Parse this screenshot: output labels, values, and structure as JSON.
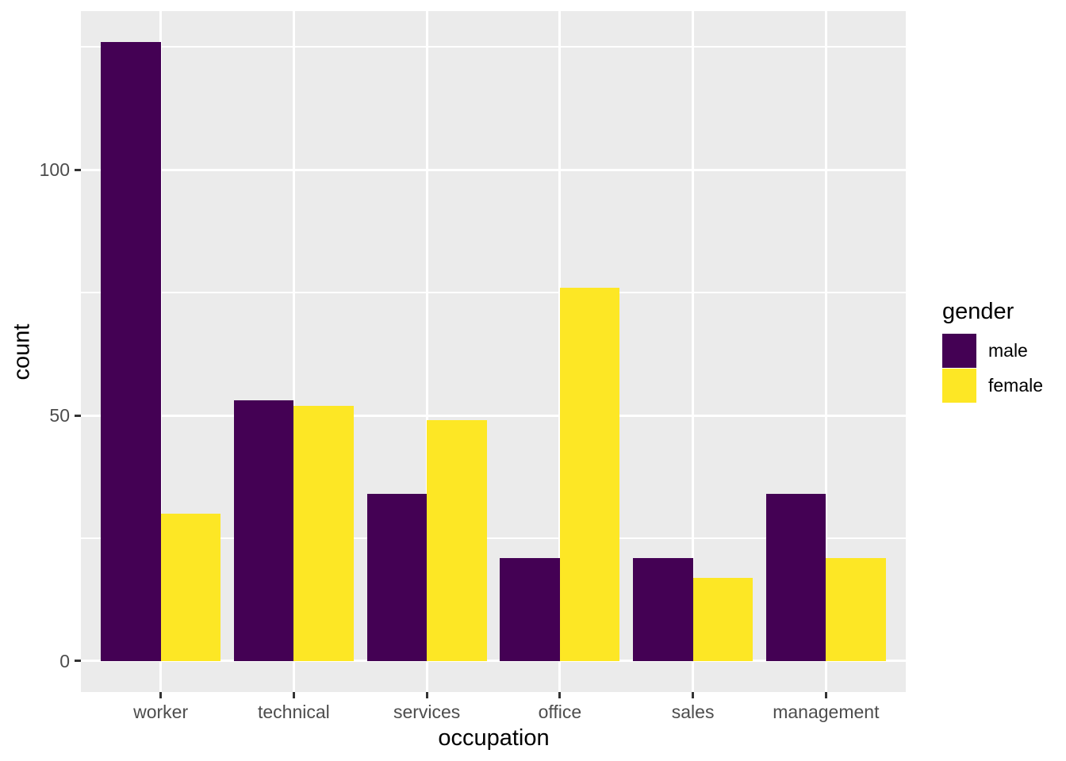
{
  "chart_data": {
    "type": "bar",
    "grouping": "dodged",
    "title": "",
    "xlabel": "occupation",
    "ylabel": "count",
    "categories": [
      "worker",
      "technical",
      "services",
      "office",
      "sales",
      "management"
    ],
    "series": [
      {
        "name": "male",
        "color": "#440154",
        "values": [
          126,
          53,
          34,
          21,
          21,
          34
        ]
      },
      {
        "name": "female",
        "color": "#FDE725",
        "values": [
          30,
          52,
          49,
          76,
          17,
          21
        ]
      }
    ],
    "legend": {
      "title": "gender",
      "position": "right"
    },
    "y_axis": {
      "tick_values": [
        0,
        50,
        100
      ],
      "tick_labels": [
        "0",
        "50",
        "100"
      ],
      "minor_gridlines": [
        25,
        75,
        125
      ],
      "range": [
        -6.3,
        132.3
      ]
    },
    "x_axis": {
      "range": [
        0.4,
        6.6
      ],
      "category_positions": [
        1,
        2,
        3,
        4,
        5,
        6
      ]
    },
    "bar_width": 0.45,
    "grid": true,
    "theme": {
      "panel_background": "#EBEBEB",
      "gridline_color": "#FFFFFF",
      "outer_background": "#FFFFFF",
      "axis_text_color": "#4D4D4D",
      "axis_title_color": "#000000",
      "tick_mark_color": "#333333"
    }
  }
}
